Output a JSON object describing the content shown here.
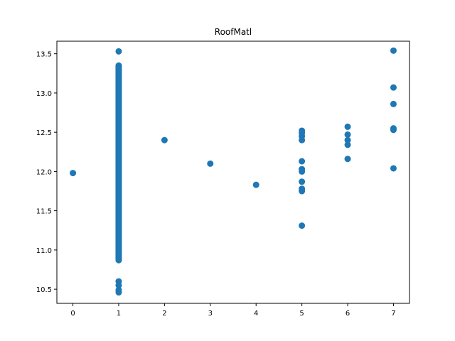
{
  "chart_data": {
    "type": "scatter",
    "title": "RoofMatl",
    "xlabel": "",
    "ylabel": "",
    "xlim": [
      -0.35,
      7.35
    ],
    "ylim": [
      10.32,
      13.66
    ],
    "xticks": [
      0,
      1,
      2,
      3,
      4,
      5,
      6,
      7
    ],
    "yticks": [
      10.5,
      11.0,
      11.5,
      12.0,
      12.5,
      13.0,
      13.5
    ],
    "ytick_labels": [
      "10.5",
      "11.0",
      "11.5",
      "12.0",
      "12.5",
      "13.0",
      "13.5"
    ],
    "grid": false,
    "marker_color": "#1f77b4",
    "points": [
      {
        "x": 0,
        "y": 11.98
      },
      {
        "x": 2,
        "y": 12.4
      },
      {
        "x": 3,
        "y": 12.1
      },
      {
        "x": 4,
        "y": 11.83
      },
      {
        "x": 5,
        "y": 12.52
      },
      {
        "x": 5,
        "y": 12.49
      },
      {
        "x": 5,
        "y": 12.45
      },
      {
        "x": 5,
        "y": 12.4
      },
      {
        "x": 5,
        "y": 12.13
      },
      {
        "x": 5,
        "y": 12.03
      },
      {
        "x": 5,
        "y": 12.0
      },
      {
        "x": 5,
        "y": 11.87
      },
      {
        "x": 5,
        "y": 11.78
      },
      {
        "x": 5,
        "y": 11.75
      },
      {
        "x": 5,
        "y": 11.31
      },
      {
        "x": 6,
        "y": 12.57
      },
      {
        "x": 6,
        "y": 12.47
      },
      {
        "x": 6,
        "y": 12.4
      },
      {
        "x": 6,
        "y": 12.34
      },
      {
        "x": 6,
        "y": 12.16
      },
      {
        "x": 7,
        "y": 13.54
      },
      {
        "x": 7,
        "y": 13.07
      },
      {
        "x": 7,
        "y": 12.86
      },
      {
        "x": 7,
        "y": 12.55
      },
      {
        "x": 7,
        "y": 12.53
      },
      {
        "x": 7,
        "y": 12.04
      }
    ],
    "x1_band": {
      "x": 1,
      "y_min": 10.87,
      "y_max": 13.35
    },
    "x1_points": [
      {
        "x": 1,
        "y": 13.53
      },
      {
        "x": 1,
        "y": 10.6
      },
      {
        "x": 1,
        "y": 10.55
      },
      {
        "x": 1,
        "y": 10.49
      },
      {
        "x": 1,
        "y": 10.46
      }
    ]
  }
}
